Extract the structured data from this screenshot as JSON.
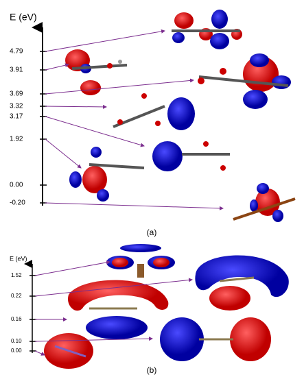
{
  "panels": [
    {
      "axis_title": "E (eV)",
      "levels": [
        "4.79",
        "3.91",
        "3.69",
        "3.32",
        "3.17",
        "1.92",
        "0.00",
        "-0.20"
      ],
      "caption": "(a)"
    },
    {
      "axis_title": "E (eV)",
      "levels": [
        "1.52",
        "0.22",
        "0.16",
        "0.10",
        "0.00"
      ],
      "caption": "(b)"
    }
  ]
}
